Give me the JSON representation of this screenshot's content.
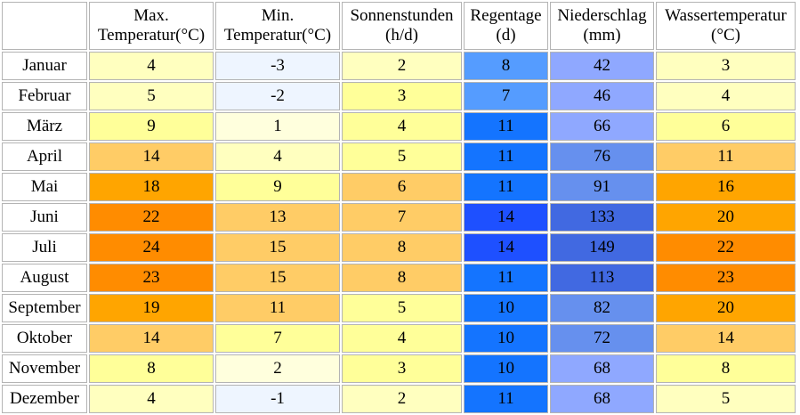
{
  "headers": [
    {
      "line1": "Max.",
      "line2": "Temperatur(°C)"
    },
    {
      "line1": "Min.",
      "line2": "Temperatur(°C)"
    },
    {
      "line1": "Sonnenstunden",
      "line2": "(h/d)"
    },
    {
      "line1": "Regentage",
      "line2": "(d)"
    },
    {
      "line1": "Niederschlag",
      "line2": "(mm)"
    },
    {
      "line1": "Wassertemperatur",
      "line2": "(°C)"
    }
  ],
  "rows": [
    {
      "month": "Januar",
      "values": [
        "4",
        "-3",
        "2",
        "8",
        "42",
        "3"
      ],
      "colors": [
        "#ffffbf",
        "#eef5ff",
        "#ffffbf",
        "#559cff",
        "#8fa8ff",
        "#ffffbf"
      ]
    },
    {
      "month": "Februar",
      "values": [
        "5",
        "-2",
        "3",
        "7",
        "46",
        "4"
      ],
      "colors": [
        "#ffffbf",
        "#eef5ff",
        "#ffff99",
        "#559cff",
        "#8fa8ff",
        "#ffffbf"
      ]
    },
    {
      "month": "März",
      "values": [
        "9",
        "1",
        "4",
        "11",
        "66",
        "6"
      ],
      "colors": [
        "#ffff99",
        "#ffffdd",
        "#ffff99",
        "#1474ff",
        "#8fa8ff",
        "#ffff99"
      ]
    },
    {
      "month": "April",
      "values": [
        "14",
        "4",
        "5",
        "11",
        "76",
        "11"
      ],
      "colors": [
        "#ffcc66",
        "#ffffbf",
        "#ffff99",
        "#1474ff",
        "#6690ee",
        "#ffcc66"
      ]
    },
    {
      "month": "Mai",
      "values": [
        "18",
        "9",
        "6",
        "11",
        "91",
        "16"
      ],
      "colors": [
        "#ffa500",
        "#ffff99",
        "#ffcc66",
        "#1474ff",
        "#6690ee",
        "#ffa500"
      ]
    },
    {
      "month": "Juni",
      "values": [
        "22",
        "13",
        "7",
        "14",
        "133",
        "20"
      ],
      "colors": [
        "#ff8c00",
        "#ffcc66",
        "#ffcc66",
        "#1e50ff",
        "#4169e1",
        "#ffa500"
      ]
    },
    {
      "month": "Juli",
      "values": [
        "24",
        "15",
        "8",
        "14",
        "149",
        "22"
      ],
      "colors": [
        "#ff8c00",
        "#ffcc66",
        "#ffcc66",
        "#1e50ff",
        "#4169e1",
        "#ff8c00"
      ]
    },
    {
      "month": "August",
      "values": [
        "23",
        "15",
        "8",
        "11",
        "113",
        "23"
      ],
      "colors": [
        "#ff8c00",
        "#ffcc66",
        "#ffcc66",
        "#1474ff",
        "#4169e1",
        "#ff8c00"
      ]
    },
    {
      "month": "September",
      "values": [
        "19",
        "11",
        "5",
        "10",
        "82",
        "20"
      ],
      "colors": [
        "#ffa500",
        "#ffcc66",
        "#ffff99",
        "#1474ff",
        "#6690ee",
        "#ffa500"
      ]
    },
    {
      "month": "Oktober",
      "values": [
        "14",
        "7",
        "4",
        "10",
        "72",
        "14"
      ],
      "colors": [
        "#ffcc66",
        "#ffff99",
        "#ffff99",
        "#1474ff",
        "#6690ee",
        "#ffcc66"
      ]
    },
    {
      "month": "November",
      "values": [
        "8",
        "2",
        "3",
        "10",
        "68",
        "8"
      ],
      "colors": [
        "#ffff99",
        "#ffffdd",
        "#ffff99",
        "#1474ff",
        "#8fa8ff",
        "#ffff99"
      ]
    },
    {
      "month": "Dezember",
      "values": [
        "4",
        "-1",
        "2",
        "11",
        "68",
        "5"
      ],
      "colors": [
        "#ffffbf",
        "#eef5ff",
        "#ffffbf",
        "#1474ff",
        "#8fa8ff",
        "#ffffbf"
      ]
    }
  ]
}
